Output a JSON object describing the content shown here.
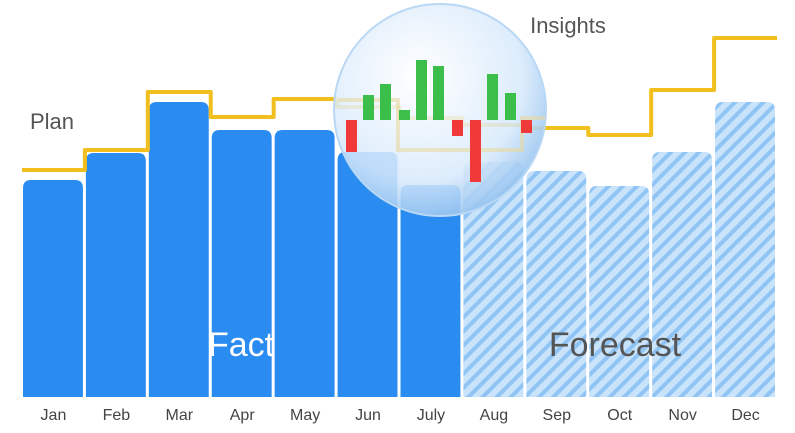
{
  "chart_data": {
    "type": "bar",
    "categories": [
      "Jan",
      "Feb",
      "Mar",
      "Apr",
      "May",
      "Jun",
      "July",
      "Aug",
      "Sep",
      "Oct",
      "Nov",
      "Dec"
    ],
    "series": [
      {
        "name": "Fact",
        "color": "#2a8cf0",
        "values": [
          217,
          244,
          295,
          267,
          267,
          245,
          212,
          null,
          null,
          null,
          null,
          null
        ]
      },
      {
        "name": "Forecast",
        "color": "#a9d2f7",
        "values": [
          null,
          null,
          null,
          null,
          null,
          null,
          null,
          235,
          226,
          211,
          245,
          295
        ]
      },
      {
        "name": "Plan",
        "color": "#f2c01e",
        "values": [
          227,
          247,
          305,
          280,
          298,
          290,
          279,
          272,
          269,
          262,
          307,
          359
        ]
      }
    ],
    "annotation": "Insights",
    "ylim": [
      0,
      370
    ]
  }
}
